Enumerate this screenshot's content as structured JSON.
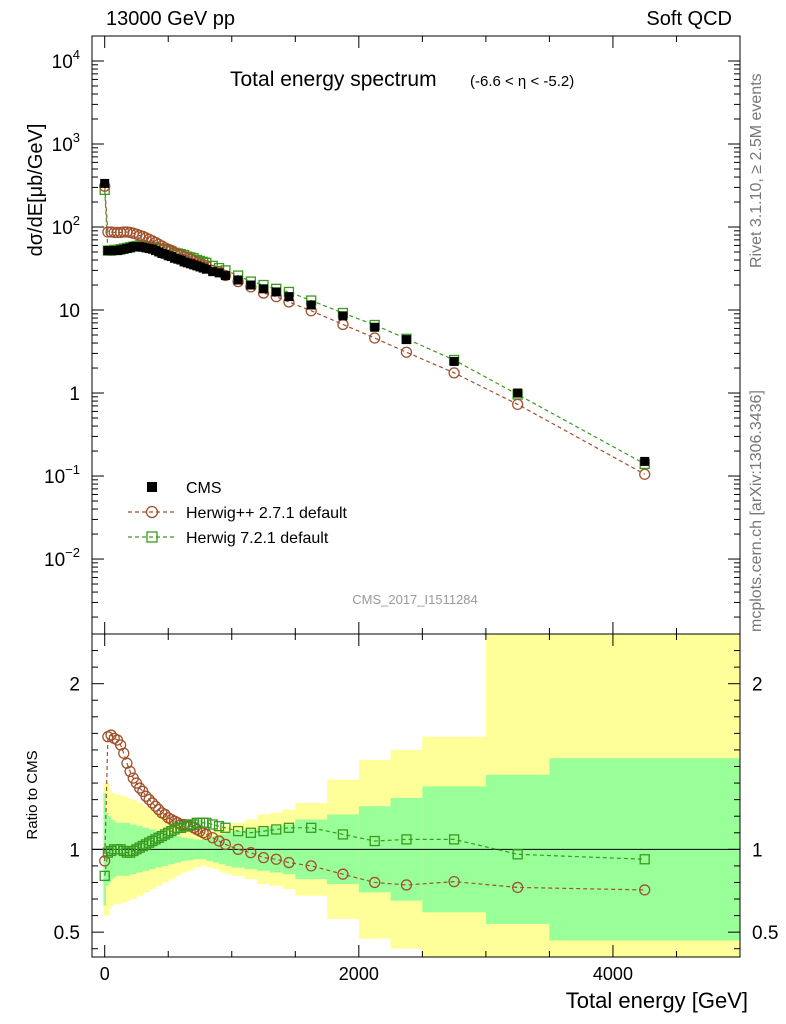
{
  "header": {
    "energy_label": "13000 GeV pp",
    "process_label": "Soft QCD"
  },
  "side_labels": {
    "rivet": "Rivet 3.1.10, ≥ 2.5M events",
    "source": "mcplots.cern.ch [arXiv:1306.3436]"
  },
  "chart_data": [
    {
      "type": "scatter",
      "panel": "main",
      "title": "Total energy spectrum",
      "subtitle": "(-6.6 < η < -5.2)",
      "ylabel": "dσ/dE[μb/GeV]",
      "xlabel": "Total energy [GeV]",
      "yscale": "log",
      "xlim": [
        -100,
        5000
      ],
      "ylim": [
        0.00125,
        20000
      ],
      "xticks": [
        0,
        2000,
        4000
      ],
      "yticks": [
        {
          "value": 10000,
          "base": "10",
          "exp": "4"
        },
        {
          "value": 1000,
          "base": "10",
          "exp": "3"
        },
        {
          "value": 100,
          "base": "10",
          "exp": "2"
        },
        {
          "value": 10,
          "base": "10",
          "exp": ""
        },
        {
          "value": 1,
          "base": "1",
          "exp": ""
        },
        {
          "value": 0.1,
          "base": "10",
          "exp": "−1"
        },
        {
          "value": 0.01,
          "base": "10",
          "exp": "−2"
        }
      ],
      "watermark": "CMS_2017_I1511284",
      "legend": [
        {
          "name": "CMS",
          "marker": "square-filled",
          "color": "#000000"
        },
        {
          "name": "Herwig++ 2.7.1 default",
          "marker": "circle-open",
          "color": "#A0522D"
        },
        {
          "name": "Herwig 7.2.1 default",
          "marker": "square-open",
          "color": "#3A9A1F"
        }
      ],
      "x": [
        0,
        25,
        50,
        75,
        100,
        125,
        150,
        175,
        200,
        225,
        250,
        275,
        300,
        325,
        350,
        375,
        400,
        425,
        450,
        475,
        500,
        525,
        550,
        575,
        600,
        625,
        650,
        675,
        700,
        725,
        750,
        775,
        800,
        850,
        900,
        950,
        1050,
        1150,
        1250,
        1350,
        1450,
        1625,
        1875,
        2125,
        2375,
        2750,
        3250,
        4250
      ],
      "series": [
        {
          "name": "CMS",
          "values": [
            335,
            52,
            52,
            52,
            52,
            53,
            54,
            55,
            56,
            58,
            58,
            58,
            57,
            56,
            55,
            54,
            52,
            50,
            48,
            47,
            45,
            44,
            42,
            41,
            40,
            38,
            37,
            36,
            35,
            34,
            33,
            32,
            31,
            29,
            28,
            26,
            23,
            20,
            18,
            16.5,
            14.5,
            11.5,
            8.5,
            6.2,
            4.4,
            2.4,
            1.0,
            0.15
          ]
        },
        {
          "name": "Herwig++ 2.7.1 default",
          "values": [
            310,
            87,
            87,
            86,
            86,
            86,
            87,
            87,
            86,
            84,
            82,
            79,
            77,
            74,
            71,
            68,
            65,
            62,
            59,
            56,
            54,
            52,
            49,
            47,
            46,
            44,
            42,
            41,
            39,
            37,
            36,
            35,
            34,
            30,
            29,
            26,
            22,
            19,
            16,
            14.5,
            12.5,
            9.8,
            6.7,
            4.6,
            3.1,
            1.75,
            0.73,
            0.105
          ]
        },
        {
          "name": "Herwig 7.2.1 default",
          "values": [
            280,
            52,
            52,
            53,
            53,
            54,
            55,
            56,
            57,
            58,
            59,
            60,
            60,
            59,
            58,
            57,
            56,
            55,
            54,
            53,
            52,
            51,
            49,
            48,
            47,
            46,
            44,
            43,
            42,
            40,
            39,
            38,
            37,
            34,
            32,
            30,
            26,
            22,
            20,
            18,
            16.5,
            13,
            9.2,
            6.6,
            4.5,
            2.5,
            0.96,
            0.14
          ]
        }
      ]
    },
    {
      "type": "scatter",
      "panel": "ratio",
      "ylabel": "Ratio to CMS",
      "xlabel": "Total energy [GeV]",
      "xlim": [
        -100,
        5000
      ],
      "ylim": [
        0.35,
        2.3
      ],
      "xticks": [
        0,
        2000,
        4000
      ],
      "yticks": [
        0.5,
        1,
        2
      ],
      "reference_line": 1,
      "x": [
        0,
        25,
        50,
        75,
        100,
        125,
        150,
        175,
        200,
        225,
        250,
        275,
        300,
        325,
        350,
        375,
        400,
        425,
        450,
        475,
        500,
        525,
        550,
        575,
        600,
        625,
        650,
        675,
        700,
        725,
        750,
        775,
        800,
        850,
        900,
        950,
        1050,
        1150,
        1250,
        1350,
        1450,
        1625,
        1875,
        2125,
        2375,
        2750,
        3250,
        4250
      ],
      "series": [
        {
          "name": "Herwig++ 2.7.1 default",
          "values": [
            0.93,
            1.68,
            1.69,
            1.67,
            1.66,
            1.63,
            1.58,
            1.52,
            1.47,
            1.43,
            1.4,
            1.37,
            1.35,
            1.32,
            1.3,
            1.28,
            1.26,
            1.24,
            1.22,
            1.21,
            1.19,
            1.18,
            1.17,
            1.16,
            1.15,
            1.15,
            1.14,
            1.14,
            1.13,
            1.12,
            1.11,
            1.1,
            1.09,
            1.07,
            1.05,
            1.03,
            1.0,
            0.98,
            0.95,
            0.94,
            0.92,
            0.9,
            0.85,
            0.8,
            0.785,
            0.805,
            0.77,
            0.755
          ]
        },
        {
          "name": "Herwig 7.2.1 default",
          "values": [
            0.84,
            0.98,
            0.99,
            1.0,
            1.0,
            1.0,
            0.99,
            0.98,
            0.98,
            0.99,
            1.0,
            1.01,
            1.02,
            1.03,
            1.04,
            1.05,
            1.06,
            1.07,
            1.08,
            1.09,
            1.1,
            1.11,
            1.12,
            1.13,
            1.13,
            1.14,
            1.14,
            1.15,
            1.15,
            1.16,
            1.16,
            1.16,
            1.16,
            1.15,
            1.14,
            1.13,
            1.11,
            1.1,
            1.11,
            1.12,
            1.13,
            1.13,
            1.09,
            1.05,
            1.06,
            1.06,
            0.97,
            0.94
          ]
        }
      ],
      "bands": {
        "edges": [
          -10,
          10,
          30,
          50,
          70,
          90,
          110,
          130,
          150,
          175,
          200,
          250,
          300,
          350,
          400,
          450,
          500,
          550,
          600,
          650,
          700,
          750,
          800,
          850,
          900,
          950,
          1000,
          1100,
          1200,
          1300,
          1400,
          1500,
          1750,
          2000,
          2250,
          2500,
          3000,
          3500,
          5000
        ],
        "stat_low": [
          0.66,
          0.78,
          0.8,
          0.82,
          0.83,
          0.84,
          0.84,
          0.84,
          0.84,
          0.84,
          0.85,
          0.86,
          0.87,
          0.88,
          0.89,
          0.9,
          0.91,
          0.92,
          0.93,
          0.935,
          0.94,
          0.94,
          0.93,
          0.92,
          0.91,
          0.9,
          0.89,
          0.88,
          0.87,
          0.86,
          0.85,
          0.82,
          0.79,
          0.74,
          0.69,
          0.62,
          0.55,
          0.45,
          0.33
        ],
        "stat_high": [
          1.34,
          1.22,
          1.2,
          1.18,
          1.17,
          1.16,
          1.16,
          1.16,
          1.16,
          1.16,
          1.15,
          1.14,
          1.13,
          1.12,
          1.11,
          1.1,
          1.09,
          1.08,
          1.07,
          1.065,
          1.06,
          1.06,
          1.07,
          1.08,
          1.09,
          1.1,
          1.11,
          1.12,
          1.13,
          1.14,
          1.15,
          1.18,
          1.21,
          1.26,
          1.31,
          1.38,
          1.45,
          1.55,
          1.67
        ],
        "total_low": [
          0.6,
          0.6,
          0.64,
          0.66,
          0.67,
          0.67,
          0.67,
          0.68,
          0.68,
          0.69,
          0.7,
          0.72,
          0.74,
          0.76,
          0.78,
          0.8,
          0.82,
          0.84,
          0.86,
          0.875,
          0.89,
          0.9,
          0.89,
          0.88,
          0.86,
          0.85,
          0.84,
          0.82,
          0.79,
          0.78,
          0.76,
          0.72,
          0.58,
          0.46,
          0.4,
          0.32,
          0.3,
          0.3,
          0.3
        ],
        "total_high": [
          1.4,
          1.4,
          1.36,
          1.34,
          1.33,
          1.33,
          1.33,
          1.32,
          1.32,
          1.31,
          1.3,
          1.28,
          1.26,
          1.24,
          1.22,
          1.2,
          1.18,
          1.16,
          1.14,
          1.125,
          1.11,
          1.1,
          1.11,
          1.12,
          1.14,
          1.15,
          1.16,
          1.18,
          1.21,
          1.22,
          1.24,
          1.28,
          1.42,
          1.54,
          1.6,
          1.68,
          2.3,
          2.4,
          2.4
        ]
      },
      "band_colors": {
        "total": "#FFFF99",
        "stat": "#99FF99"
      }
    }
  ]
}
